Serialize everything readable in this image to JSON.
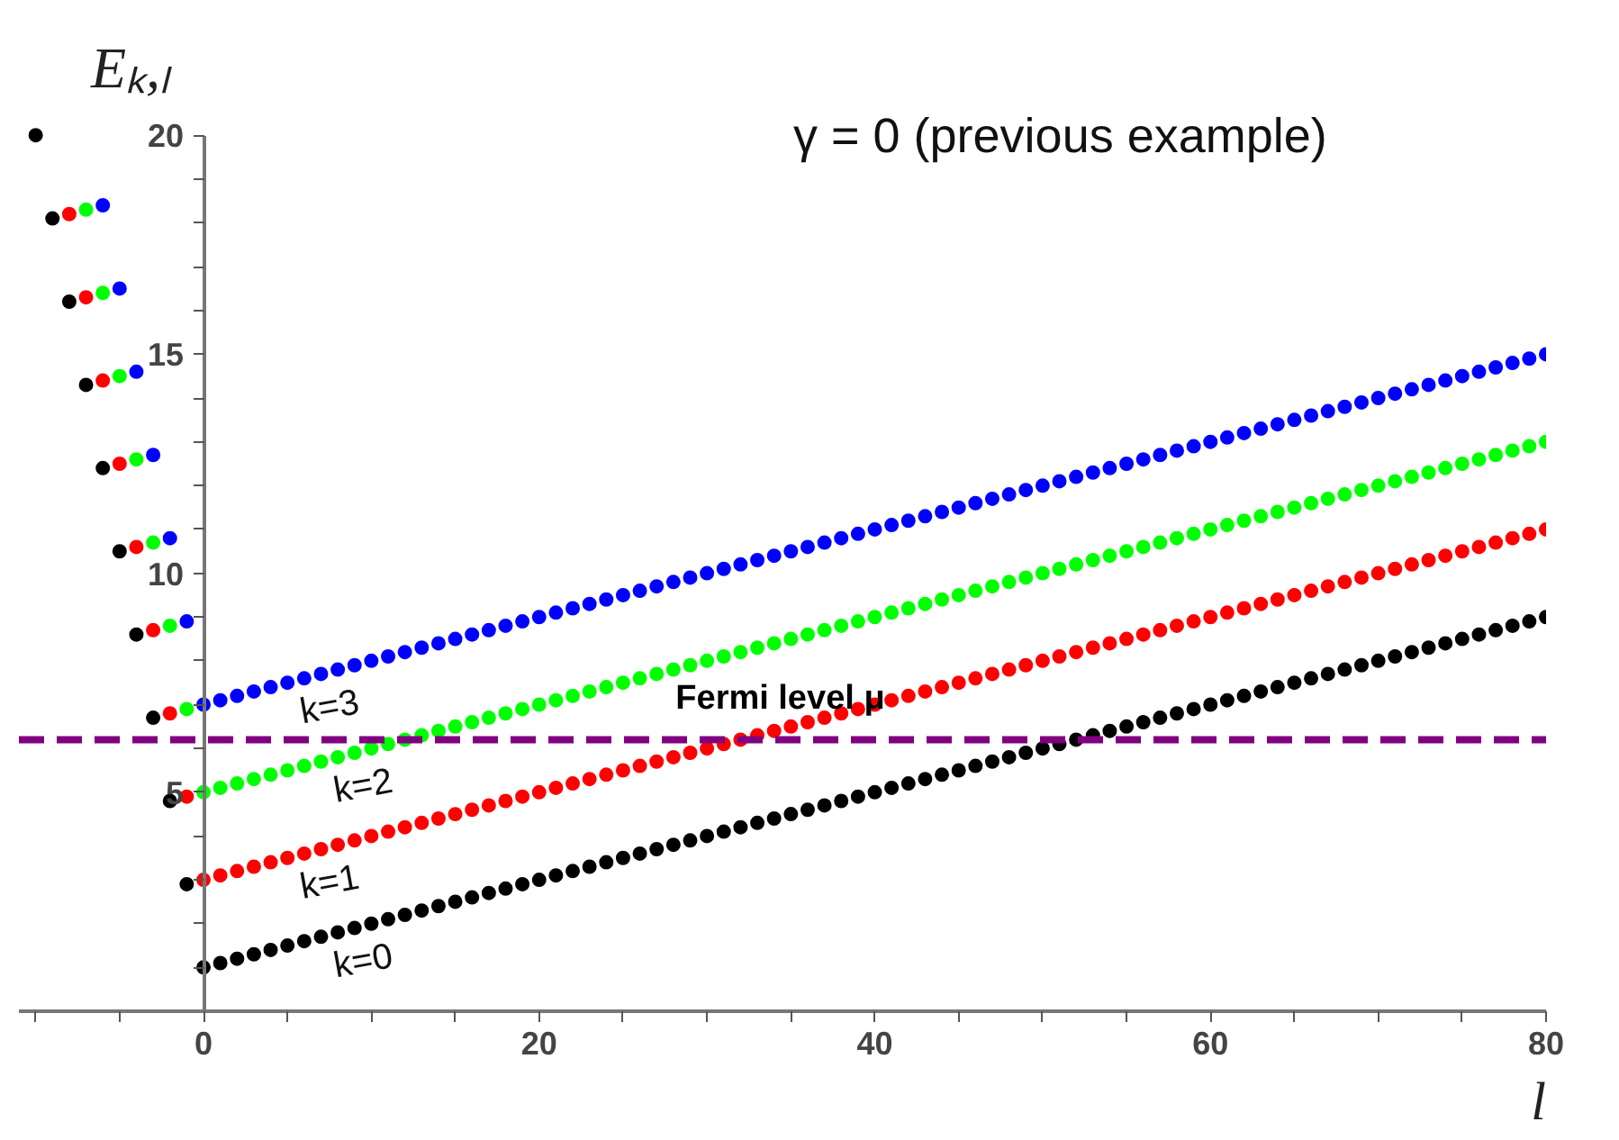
{
  "chart_data": {
    "type": "scatter",
    "title": "γ = 0  (previous example)",
    "xlabel": "l",
    "ylabel": "Eₖ,ₗ",
    "xlim": [
      -11,
      80
    ],
    "ylim": [
      0,
      20
    ],
    "xticks": [
      {
        "value": -10,
        "label": null
      },
      {
        "value": -5,
        "label": null
      },
      0,
      {
        "value": 5,
        "label": null
      },
      {
        "value": 10,
        "label": null
      },
      {
        "value": 15,
        "label": null
      },
      20,
      {
        "value": 25,
        "label": null
      },
      {
        "value": 30,
        "label": null
      },
      {
        "value": 35,
        "label": null
      },
      40,
      {
        "value": 45,
        "label": null
      },
      {
        "value": 50,
        "label": null
      },
      {
        "value": 55,
        "label": null
      },
      60,
      {
        "value": 65,
        "label": null
      },
      {
        "value": 70,
        "label": null
      },
      {
        "value": 75,
        "label": null
      },
      80
    ],
    "yticks": [
      {
        "value": 1,
        "label": null
      },
      {
        "value": 2,
        "label": null
      },
      {
        "value": 3,
        "label": null
      },
      {
        "value": 4,
        "label": null
      },
      5,
      {
        "value": 6,
        "label": null
      },
      {
        "value": 7,
        "label": null
      },
      {
        "value": 8,
        "label": null
      },
      {
        "value": 9,
        "label": null
      },
      10,
      {
        "value": 11,
        "label": null
      },
      {
        "value": 12,
        "label": null
      },
      {
        "value": 13,
        "label": null
      },
      {
        "value": 14,
        "label": null
      },
      15,
      {
        "value": 16,
        "label": null
      },
      {
        "value": 17,
        "label": null
      },
      {
        "value": 18,
        "label": null
      },
      {
        "value": 19,
        "label": null
      },
      20
    ],
    "grid": false,
    "marker": "circle",
    "series": [
      {
        "color": "#000000",
        "x": [
          -10,
          -9,
          -8,
          -7,
          -6,
          -5,
          -4,
          -3,
          -2,
          -1,
          0,
          1,
          2,
          3,
          4,
          5,
          6,
          7,
          8,
          9,
          10,
          11,
          12,
          13,
          14,
          15,
          16,
          17,
          18,
          19,
          20,
          21,
          22,
          23,
          24,
          25,
          26,
          27,
          28,
          29,
          30,
          31,
          32,
          33,
          34,
          35,
          36,
          37,
          38,
          39,
          40,
          41,
          42,
          43,
          44,
          45,
          46,
          47,
          48,
          49,
          50,
          51,
          52,
          53,
          54,
          55,
          56,
          57,
          58,
          59,
          60,
          61,
          62,
          63,
          64,
          65,
          66,
          67,
          68,
          69,
          70,
          71,
          72,
          73,
          74,
          75,
          76,
          77,
          78,
          79,
          80
        ],
        "values": [
          20.0,
          18.1,
          16.2,
          14.3,
          12.4,
          10.5,
          8.6,
          6.7,
          4.8,
          2.9,
          1.0,
          1.1,
          1.2,
          1.3,
          1.4,
          1.5,
          1.6,
          1.7,
          1.8,
          1.9,
          2.0,
          2.1,
          2.2,
          2.3,
          2.4,
          2.5,
          2.6,
          2.7,
          2.8,
          2.9,
          3.0,
          3.1,
          3.2,
          3.3,
          3.4,
          3.5,
          3.6,
          3.7,
          3.8,
          3.9,
          4.0,
          4.1,
          4.2,
          4.3,
          4.4,
          4.5,
          4.6,
          4.7,
          4.8,
          4.9,
          5.0,
          5.1,
          5.2,
          5.3,
          5.4,
          5.5,
          5.6,
          5.7,
          5.8,
          5.9,
          6.0,
          6.1,
          6.2,
          6.3,
          6.4,
          6.5,
          6.6,
          6.7,
          6.8,
          6.9,
          7.0,
          7.1,
          7.2,
          7.3,
          7.4,
          7.5,
          7.6,
          7.7,
          7.8,
          7.9,
          8.0,
          8.1,
          8.2,
          8.3,
          8.4,
          8.5,
          8.6,
          8.7,
          8.8,
          8.9,
          9.0
        ]
      },
      {
        "color": "#ff0000",
        "x": [
          -8,
          -7,
          -6,
          -5,
          -4,
          -3,
          -2,
          -1,
          0,
          1,
          2,
          3,
          4,
          5,
          6,
          7,
          8,
          9,
          10,
          11,
          12,
          13,
          14,
          15,
          16,
          17,
          18,
          19,
          20,
          21,
          22,
          23,
          24,
          25,
          26,
          27,
          28,
          29,
          30,
          31,
          32,
          33,
          34,
          35,
          36,
          37,
          38,
          39,
          40,
          41,
          42,
          43,
          44,
          45,
          46,
          47,
          48,
          49,
          50,
          51,
          52,
          53,
          54,
          55,
          56,
          57,
          58,
          59,
          60,
          61,
          62,
          63,
          64,
          65,
          66,
          67,
          68,
          69,
          70,
          71,
          72,
          73,
          74,
          75,
          76,
          77,
          78,
          79,
          80
        ],
        "values": [
          18.2,
          16.3,
          14.4,
          12.5,
          10.6,
          8.7,
          6.8,
          4.9,
          3.0,
          3.1,
          3.2,
          3.3,
          3.4,
          3.5,
          3.6,
          3.7,
          3.8,
          3.9,
          4.0,
          4.1,
          4.2,
          4.3,
          4.4,
          4.5,
          4.6,
          4.7,
          4.8,
          4.9,
          5.0,
          5.1,
          5.2,
          5.3,
          5.4,
          5.5,
          5.6,
          5.7,
          5.8,
          5.9,
          6.0,
          6.1,
          6.2,
          6.3,
          6.4,
          6.5,
          6.6,
          6.7,
          6.8,
          6.9,
          7.0,
          7.1,
          7.2,
          7.3,
          7.4,
          7.5,
          7.6,
          7.7,
          7.8,
          7.9,
          8.0,
          8.1,
          8.2,
          8.3,
          8.4,
          8.5,
          8.6,
          8.7,
          8.8,
          8.9,
          9.0,
          9.1,
          9.2,
          9.3,
          9.4,
          9.5,
          9.6,
          9.7,
          9.8,
          9.9,
          10.0,
          10.1,
          10.2,
          10.3,
          10.4,
          10.5,
          10.6,
          10.7,
          10.8,
          10.9,
          11.0
        ]
      },
      {
        "color": "#00ff00",
        "x": [
          -7,
          -6,
          -5,
          -4,
          -3,
          -2,
          -1,
          0,
          1,
          2,
          3,
          4,
          5,
          6,
          7,
          8,
          9,
          10,
          11,
          12,
          13,
          14,
          15,
          16,
          17,
          18,
          19,
          20,
          21,
          22,
          23,
          24,
          25,
          26,
          27,
          28,
          29,
          30,
          31,
          32,
          33,
          34,
          35,
          36,
          37,
          38,
          39,
          40,
          41,
          42,
          43,
          44,
          45,
          46,
          47,
          48,
          49,
          50,
          51,
          52,
          53,
          54,
          55,
          56,
          57,
          58,
          59,
          60,
          61,
          62,
          63,
          64,
          65,
          66,
          67,
          68,
          69,
          70,
          71,
          72,
          73,
          74,
          75,
          76,
          77,
          78,
          79,
          80
        ],
        "values": [
          18.3,
          16.4,
          14.5,
          12.6,
          10.7,
          8.8,
          6.9,
          5.0,
          5.1,
          5.2,
          5.3,
          5.4,
          5.5,
          5.6,
          5.7,
          5.8,
          5.9,
          6.0,
          6.1,
          6.2,
          6.3,
          6.4,
          6.5,
          6.6,
          6.7,
          6.8,
          6.9,
          7.0,
          7.1,
          7.2,
          7.3,
          7.4,
          7.5,
          7.6,
          7.7,
          7.8,
          7.9,
          8.0,
          8.1,
          8.2,
          8.3,
          8.4,
          8.5,
          8.6,
          8.7,
          8.8,
          8.9,
          9.0,
          9.1,
          9.2,
          9.3,
          9.4,
          9.5,
          9.6,
          9.7,
          9.8,
          9.9,
          10.0,
          10.1,
          10.2,
          10.3,
          10.4,
          10.5,
          10.6,
          10.7,
          10.8,
          10.9,
          11.0,
          11.1,
          11.2,
          11.3,
          11.4,
          11.5,
          11.6,
          11.7,
          11.8,
          11.9,
          12.0,
          12.1,
          12.2,
          12.3,
          12.4,
          12.5,
          12.6,
          12.7,
          12.8,
          12.9,
          13.0
        ]
      },
      {
        "color": "#0000ff",
        "x": [
          -6,
          -5,
          -4,
          -3,
          -2,
          -1,
          0,
          1,
          2,
          3,
          4,
          5,
          6,
          7,
          8,
          9,
          10,
          11,
          12,
          13,
          14,
          15,
          16,
          17,
          18,
          19,
          20,
          21,
          22,
          23,
          24,
          25,
          26,
          27,
          28,
          29,
          30,
          31,
          32,
          33,
          34,
          35,
          36,
          37,
          38,
          39,
          40,
          41,
          42,
          43,
          44,
          45,
          46,
          47,
          48,
          49,
          50,
          51,
          52,
          53,
          54,
          55,
          56,
          57,
          58,
          59,
          60,
          61,
          62,
          63,
          64,
          65,
          66,
          67,
          68,
          69,
          70,
          71,
          72,
          73,
          74,
          75,
          76,
          77,
          78,
          79,
          80
        ],
        "values": [
          18.4,
          16.5,
          14.6,
          12.7,
          10.8,
          8.9,
          7.0,
          7.1,
          7.2,
          7.3,
          7.4,
          7.5,
          7.6,
          7.7,
          7.8,
          7.9,
          8.0,
          8.1,
          8.2,
          8.3,
          8.4,
          8.5,
          8.6,
          8.7,
          8.8,
          8.9,
          9.0,
          9.1,
          9.2,
          9.3,
          9.4,
          9.5,
          9.6,
          9.7,
          9.8,
          9.9,
          10.0,
          10.1,
          10.2,
          10.3,
          10.4,
          10.5,
          10.6,
          10.7,
          10.8,
          10.9,
          11.0,
          11.1,
          11.2,
          11.3,
          11.4,
          11.5,
          11.6,
          11.7,
          11.8,
          11.9,
          12.0,
          12.1,
          12.2,
          12.3,
          12.4,
          12.5,
          12.6,
          12.7,
          12.8,
          12.9,
          13.0,
          13.1,
          13.2,
          13.3,
          13.4,
          13.5,
          13.6,
          13.7,
          13.8,
          13.9,
          14.0,
          14.1,
          14.2,
          14.3,
          14.4,
          14.5,
          14.6,
          14.7,
          14.8,
          14.9,
          15.0
        ]
      }
    ],
    "ref_lines": [
      {
        "axis": "y",
        "value": 6.2,
        "label": "Fermi level μ",
        "color": "#800080",
        "line_style": "dashed"
      }
    ],
    "annotations": [
      "k=0",
      "k=1",
      "k=2",
      "k=3"
    ]
  }
}
